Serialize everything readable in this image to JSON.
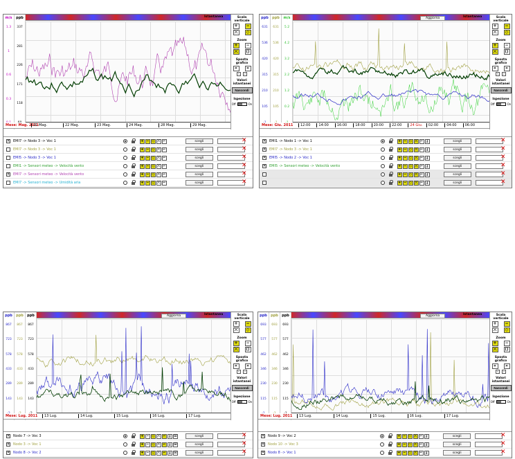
{
  "colors": {
    "dark_green": "#003c00",
    "purple": "#b040b0",
    "olive": "#a0a040",
    "blue": "#2828c8",
    "green": "#30d030",
    "axis_red": "#d01010"
  },
  "common": {
    "intermanual": "Istantanea",
    "vertical": "Scala verticale",
    "zoom": "Zoom",
    "shift": "Sposta grafico",
    "instant_values": "Valori istantanei",
    "hide": "Nascondi",
    "inspection": "Ispezione",
    "off": "Off",
    "on": "On",
    "update": "Aggiorna",
    "choose": "scegli",
    "delete": "✕"
  },
  "panels": [
    {
      "id": "p1",
      "yaxes": [
        {
          "unit": "m/s",
          "color": "#c000c0",
          "ticks": [
            "1.3",
            "1",
            "0.6",
            "0.3",
            "0.1"
          ]
        },
        {
          "unit": "ppb",
          "color": "#000000",
          "ticks": [
            "337",
            "281",
            "226",
            "171",
            "118",
            "60"
          ]
        }
      ],
      "month": "Mese: Mag. 2011",
      "xticks": [
        "21 Mag.",
        "22 Mag.",
        "23 Mag.",
        "24 Mag.",
        "28 Mag.",
        "29 Mag."
      ],
      "show_update": false,
      "rows": [
        {
          "checked": true,
          "label": "EMI7 -> Nodo 3 -> Voc 1",
          "color": "#000000",
          "radio": true,
          "minis": "yyyww",
          "dis": false
        },
        {
          "checked": false,
          "label": "EMI7 -> Nodo 3 -> Voc 1",
          "color": "#a0a040",
          "radio": false,
          "minis": "yyyww",
          "dis": false
        },
        {
          "checked": false,
          "label": "EMI5 -> Nodo 3 -> Voc 1",
          "color": "#2828c8",
          "radio": false,
          "minis": "yyyww",
          "dis": false
        },
        {
          "checked": false,
          "label": "EMI1 -> Sensori meteo -> Velocità vento",
          "color": "#30a030",
          "radio": false,
          "minis": "yyyww",
          "dis": false
        },
        {
          "checked": true,
          "label": "EMI7 -> Sensori meteo -> Velocità vento",
          "color": "#b040b0",
          "radio": false,
          "minis": "yyyww",
          "dis": false
        },
        {
          "checked": false,
          "label": "EMI7 -> Sensori meteo -> Umidità aria",
          "color": "#20b0d0",
          "radio": false,
          "minis": "yyyww",
          "dis": false
        }
      ]
    },
    {
      "id": "p2",
      "yaxes": [
        {
          "unit": "ppb",
          "color": "#2828c8",
          "ticks": [
            "631",
            "536",
            "420",
            "315",
            "210",
            "105",
            "-1"
          ]
        },
        {
          "unit": "ppb",
          "color": "#a0a040",
          "ticks": [
            "631",
            "536",
            "420",
            "315",
            "210",
            "105",
            "-1"
          ]
        },
        {
          "unit": "m/s",
          "color": "#30c030",
          "ticks": [
            "5.2",
            "4.2",
            "3.2",
            "2.2",
            "1.2",
            "0.2",
            "-1"
          ]
        }
      ],
      "month": "Mese: Giu. 2011",
      "xticks": [
        "12:00",
        "14:00",
        "16:00",
        "18:00",
        "20:00",
        "22:00",
        "24 Giu.",
        "02:00",
        "04:00",
        "06:00"
      ],
      "show_update": true,
      "rows": [
        {
          "checked": true,
          "label": "EMI1 -> Nodo 1 -> Voc 1",
          "color": "#000000",
          "radio": true,
          "minis": "yyyyww",
          "dis": false
        },
        {
          "checked": true,
          "label": "EMI7 -> Nodo 3 -> Voc 1",
          "color": "#a0a040",
          "radio": false,
          "minis": "yyyyww",
          "dis": false
        },
        {
          "checked": true,
          "label": "EMI5 -> Nodo 2 -> Voc 1",
          "color": "#2828c8",
          "radio": false,
          "minis": "yyyyww",
          "dis": false
        },
        {
          "checked": true,
          "label": "EMI5 -> Sensori meteo -> Velocità vento",
          "color": "#30a030",
          "radio": false,
          "minis": "yyyyww",
          "dis": false
        },
        {
          "checked": false,
          "label": "",
          "color": "#000",
          "radio": false,
          "minis": "yyyyww",
          "dis": true
        },
        {
          "checked": false,
          "label": "",
          "color": "#000",
          "radio": false,
          "minis": "yyyyww",
          "dis": true
        }
      ]
    },
    {
      "id": "p3",
      "yaxes": [
        {
          "unit": "ppb",
          "color": "#2828c8",
          "ticks": [
            "867",
            "723",
            "578",
            "433",
            "289",
            "143",
            "-2"
          ]
        },
        {
          "unit": "ppb",
          "color": "#a0a040",
          "ticks": [
            "867",
            "723",
            "578",
            "433",
            "289",
            "143",
            "-2"
          ]
        },
        {
          "unit": "ppb",
          "color": "#000000",
          "ticks": [
            "867",
            "723",
            "578",
            "433",
            "289",
            "143",
            "-2"
          ]
        }
      ],
      "month": "Mese: Lug. 2011",
      "xticks": [
        "13 Lug.",
        "14 Lug.",
        "15 Lug.",
        "16 Lug.",
        "17 Lug."
      ],
      "show_update": true,
      "rows": [
        {
          "checked": true,
          "label": "Nodo 7 -> Voc 3",
          "color": "#000000",
          "radio": true,
          "minis": "ywywyww",
          "dis": false
        },
        {
          "checked": true,
          "label": "Nodo 3 -> Voc 1",
          "color": "#a0a040",
          "radio": false,
          "minis": "ywywyww",
          "dis": false
        },
        {
          "checked": true,
          "label": "Nodo 8 -> Voc 2",
          "color": "#2828c8",
          "radio": false,
          "minis": "ywywyww",
          "dis": false
        }
      ]
    },
    {
      "id": "p4",
      "yaxes": [
        {
          "unit": "ppb",
          "color": "#2828c8",
          "ticks": [
            "693",
            "577",
            "462",
            "346",
            "230",
            "115",
            "-1"
          ]
        },
        {
          "unit": "ppb",
          "color": "#a0a040",
          "ticks": [
            "693",
            "577",
            "462",
            "346",
            "230",
            "115",
            "-1"
          ]
        },
        {
          "unit": "ppb",
          "color": "#000000",
          "ticks": [
            "693",
            "577",
            "462",
            "346",
            "230",
            "115",
            "-1"
          ]
        }
      ],
      "month": "Mese: Lug. 2011",
      "xticks": [
        "13 Lug.",
        "14 Lug.",
        "15 Lug.",
        "16 Lug.",
        "17 Lug."
      ],
      "show_update": true,
      "rows": [
        {
          "checked": true,
          "label": "Nodo 9 -> Voc 2",
          "color": "#000000",
          "radio": true,
          "minis": "yyyyww",
          "dis": false
        },
        {
          "checked": true,
          "label": "Nodo 10 -> Voc 3",
          "color": "#a0a040",
          "radio": false,
          "minis": "yyyyww",
          "dis": false
        },
        {
          "checked": true,
          "label": "Nodo 8 -> Voc 1",
          "color": "#2828c8",
          "radio": false,
          "minis": "yyyyww",
          "dis": false
        }
      ]
    }
  ]
}
